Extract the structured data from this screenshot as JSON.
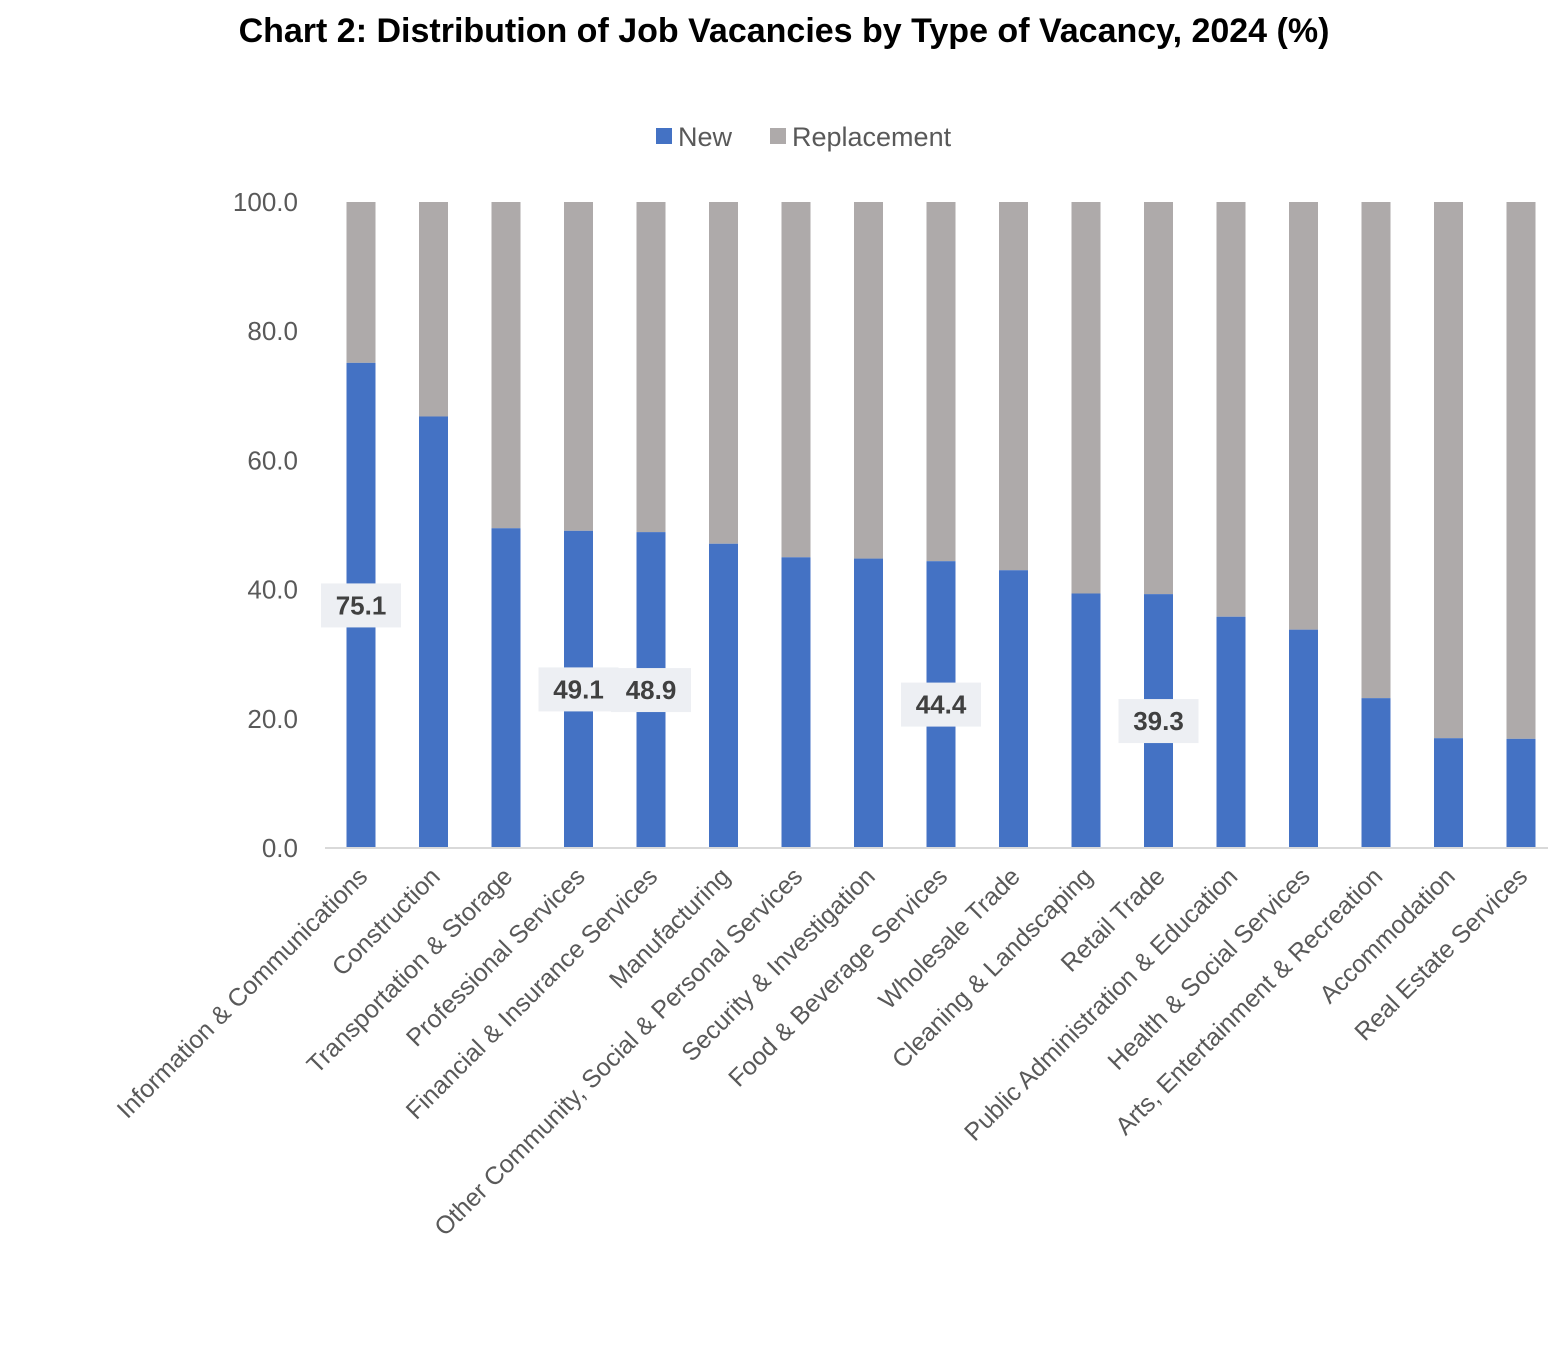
{
  "chart_data": {
    "type": "bar",
    "stacked": true,
    "title": "Chart 2: Distribution of Job Vacancies by Type of Vacancy, 2024 (%)",
    "xlabel": "",
    "ylabel": "",
    "ylim": [
      0,
      100
    ],
    "yticks": [
      "0.0",
      "20.0",
      "40.0",
      "60.0",
      "80.0",
      "100.0"
    ],
    "legend": {
      "position": "top"
    },
    "grid": false,
    "categories": [
      "Information & Communications",
      "Construction",
      "Transportation & Storage",
      "Professional Services",
      "Financial & Insurance Services",
      "Manufacturing",
      "Other Community, Social & Personal Services",
      "Security & Investigation",
      "Food & Beverage Services",
      "Wholesale Trade",
      "Cleaning & Landscaping",
      "Retail Trade",
      "Public Administration & Education",
      "Health & Social Services",
      "Arts, Entertainment & Recreation",
      "Accommodation",
      "Real Estate Services"
    ],
    "series": [
      {
        "name": "New",
        "color": "#4472C4",
        "values": [
          75.1,
          66.8,
          49.5,
          49.1,
          48.9,
          47.1,
          45.0,
          44.8,
          44.4,
          43.0,
          39.4,
          39.3,
          35.8,
          33.8,
          23.2,
          17.0,
          16.9
        ]
      },
      {
        "name": "Replacement",
        "color": "#AEAAAA",
        "values": [
          24.9,
          33.2,
          50.5,
          50.9,
          51.1,
          52.9,
          55.0,
          55.2,
          55.6,
          57.0,
          60.6,
          60.7,
          64.2,
          66.2,
          76.8,
          83.0,
          83.1
        ]
      }
    ],
    "data_labels": [
      {
        "category_index": 0,
        "text": "75.1"
      },
      {
        "category_index": 3,
        "text": "49.1"
      },
      {
        "category_index": 4,
        "text": "48.9"
      },
      {
        "category_index": 8,
        "text": "44.4"
      },
      {
        "category_index": 11,
        "text": "39.3"
      }
    ]
  }
}
